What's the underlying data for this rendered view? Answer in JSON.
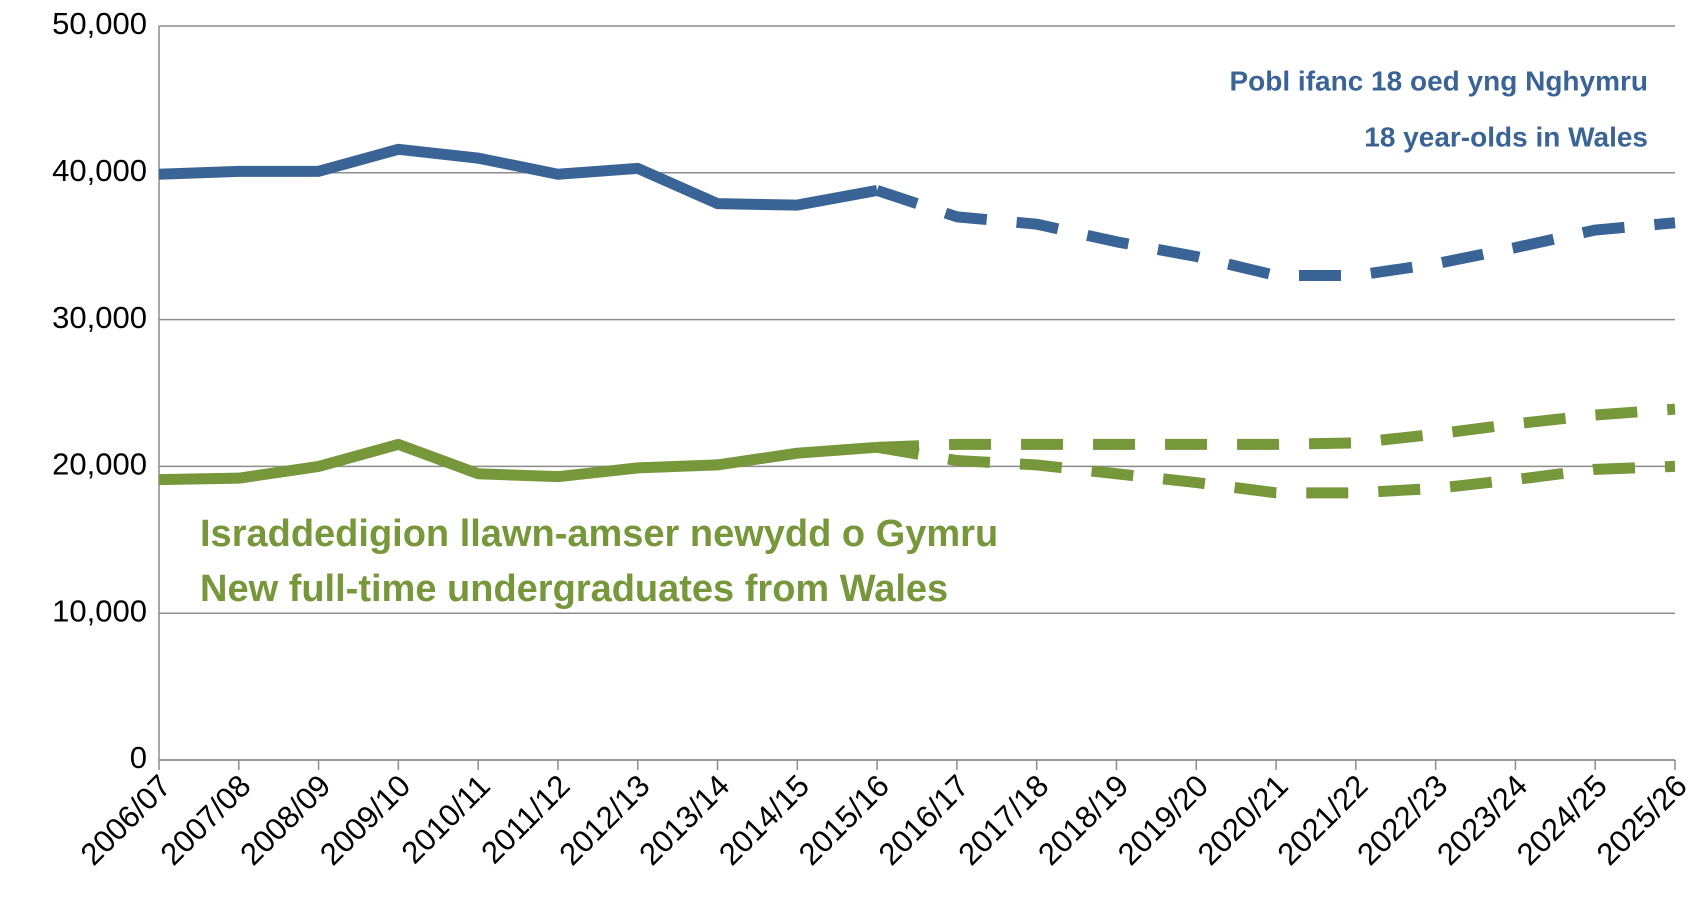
{
  "chart_data": {
    "type": "line",
    "categories": [
      "2006/07",
      "2007/08",
      "2008/09",
      "2009/10",
      "2010/11",
      "2011/12",
      "2012/13",
      "2013/14",
      "2014/15",
      "2015/16",
      "2016/17",
      "2017/18",
      "2018/19",
      "2019/20",
      "2020/21",
      "2021/22",
      "2022/23",
      "2023/24",
      "2024/25",
      "2025/26"
    ],
    "series": [
      {
        "color": "#3a6496",
        "style": "solid",
        "values": [
          39900,
          40100,
          40100,
          41600,
          41000,
          39900,
          40300,
          37900,
          37800,
          38800,
          null,
          null,
          null,
          null,
          null,
          null,
          null,
          null,
          null,
          null
        ]
      },
      {
        "color": "#3a6496",
        "style": "dashed",
        "values": [
          null,
          null,
          null,
          null,
          null,
          null,
          null,
          null,
          null,
          38800,
          37000,
          36500,
          35300,
          34300,
          33000,
          33000,
          33800,
          34900,
          36100,
          36600
        ]
      },
      {
        "color": "#76973a",
        "style": "solid",
        "values": [
          19100,
          19200,
          20000,
          21500,
          19500,
          19300,
          19900,
          20100,
          20900,
          21300,
          null,
          null,
          null,
          null,
          null,
          null,
          null,
          null,
          null,
          null
        ]
      },
      {
        "color": "#76973a",
        "style": "dashed",
        "values": [
          null,
          null,
          null,
          null,
          null,
          null,
          null,
          null,
          null,
          21300,
          21500,
          21500,
          21500,
          21500,
          21500,
          21600,
          22200,
          22900,
          23500,
          23900
        ]
      },
      {
        "color": "#76973a",
        "style": "dashed",
        "values": [
          null,
          null,
          null,
          null,
          null,
          null,
          null,
          null,
          null,
          21300,
          20400,
          20100,
          19500,
          18900,
          18200,
          18200,
          18500,
          19100,
          19800,
          20000
        ]
      }
    ],
    "annotations": [
      {
        "text": "Pobl ifanc 18 oed yng Nghymru",
        "color": "#3a6496"
      },
      {
        "text": "18 year-olds in Wales",
        "color": "#3a6496"
      },
      {
        "text": "Israddedigion llawn-amser newydd o Gymru",
        "color": "#76973a"
      },
      {
        "text": "New full-time undergraduates from Wales",
        "color": "#76973a"
      }
    ],
    "ylim": [
      0,
      50000
    ],
    "yticks": [
      {
        "value": 0,
        "label": "0"
      },
      {
        "value": 10000,
        "label": "10,000"
      },
      {
        "value": 20000,
        "label": "20,000"
      },
      {
        "value": 30000,
        "label": "30,000"
      },
      {
        "value": 40000,
        "label": "40,000"
      },
      {
        "value": 50000,
        "label": "50,000"
      }
    ],
    "grid": true
  }
}
